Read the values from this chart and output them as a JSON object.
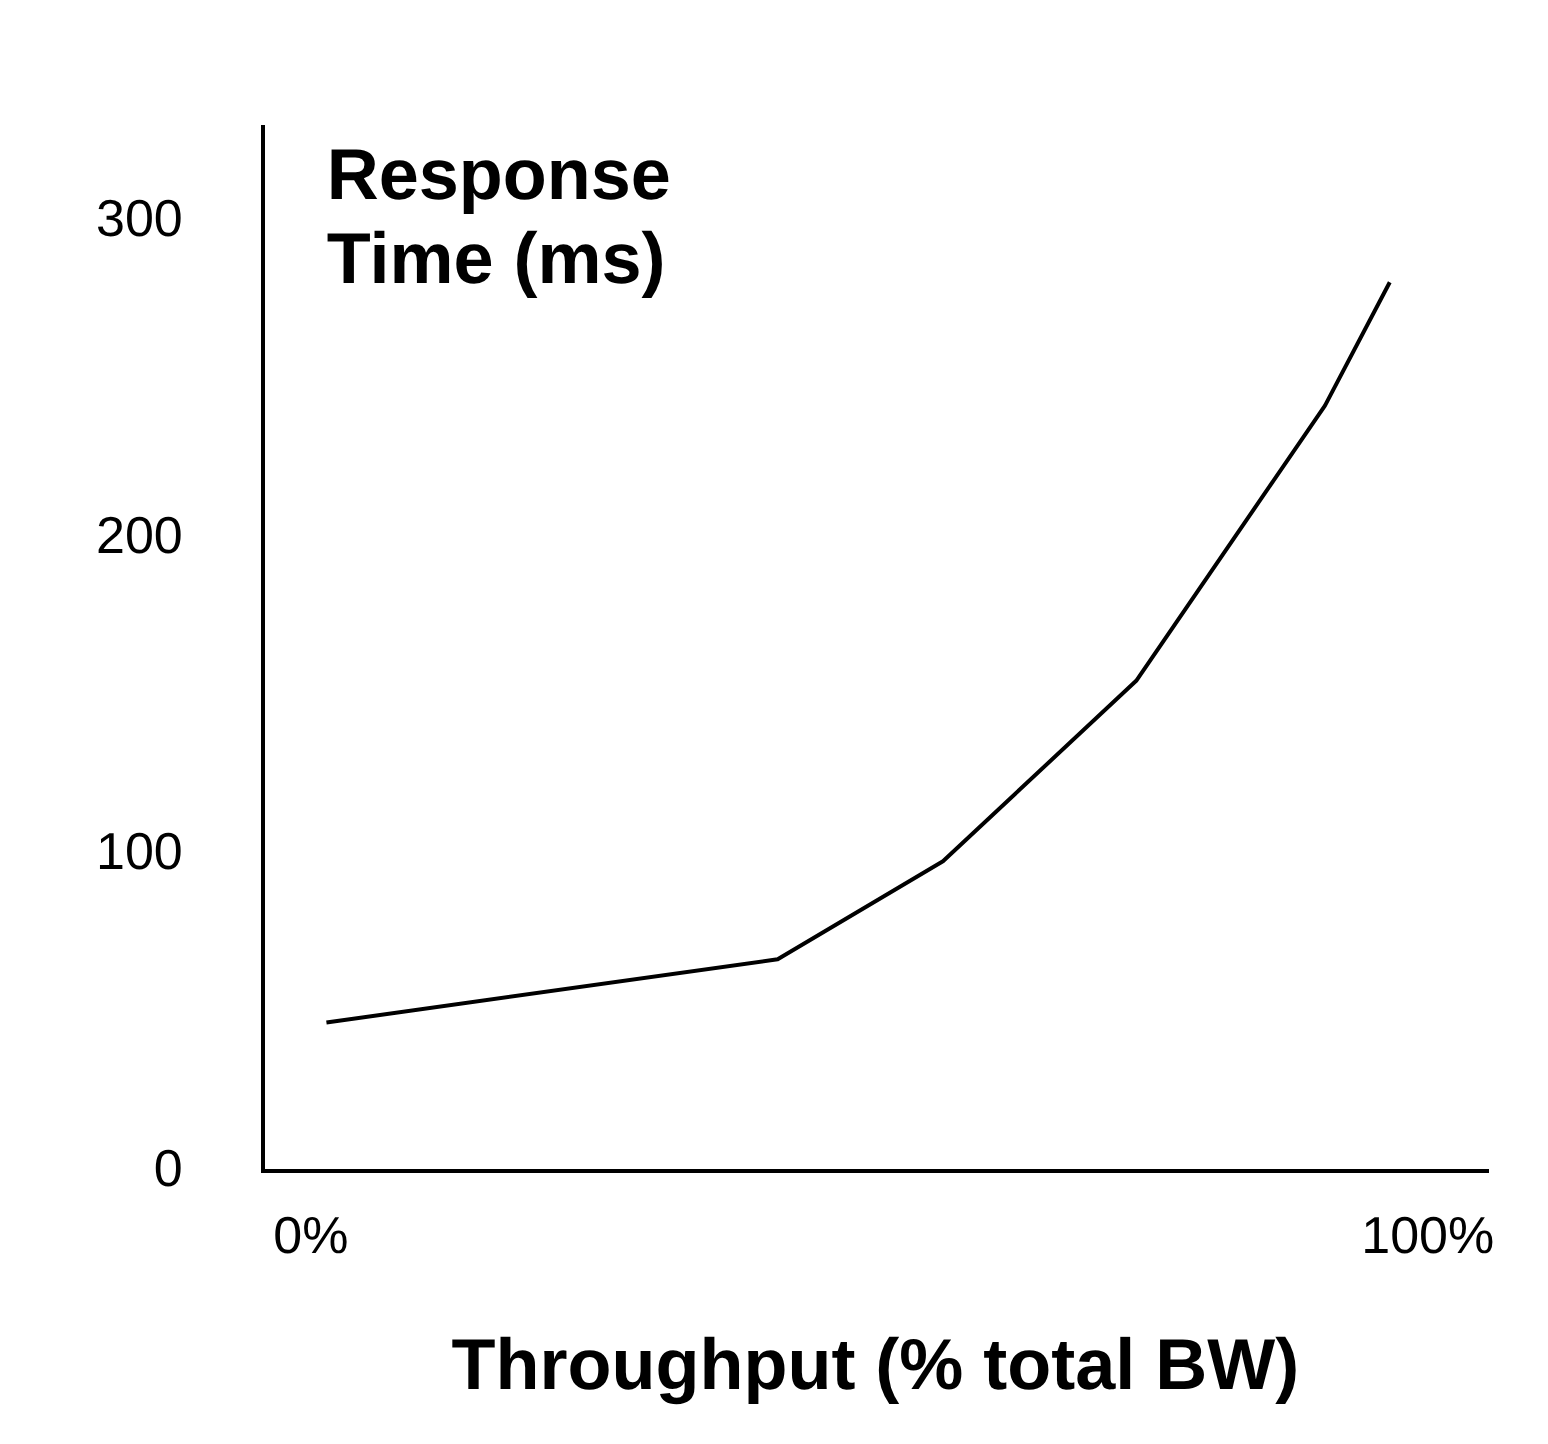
{
  "chart_data": {
    "type": "line",
    "ylabel": "Response Time (ms)",
    "xlabel": "Throughput (% total BW)",
    "x": [
      1.4,
      41.8,
      56.6,
      73.9,
      90.8,
      96.6
    ],
    "series": [
      {
        "color": "#000000",
        "values": [
          47,
          67,
          98,
          155,
          242,
          281
        ]
      }
    ],
    "xlim": [
      -4.3,
      105.4
    ],
    "xticks": [
      {
        "value": 0,
        "label": "0%"
      },
      {
        "value": 100,
        "label": "100%"
      }
    ],
    "ylim": [
      0,
      330
    ],
    "yticks": [
      0,
      100,
      200,
      300
    ],
    "grid": false,
    "legend": false,
    "marker": "none",
    "line_style": "solid"
  }
}
